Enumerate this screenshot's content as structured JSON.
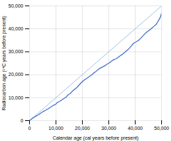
{
  "chart_data": {
    "type": "line",
    "xlabel": "Calendar age (cal years before present)",
    "ylabel": "Radiocarbon age (¹⁴C years before present)",
    "xlim": [
      0,
      50000
    ],
    "ylim": [
      0,
      50000
    ],
    "xticks": [
      0,
      {
        "value": 10000,
        "label": "10,000"
      },
      {
        "value": 20000,
        "label": "20,000"
      },
      {
        "value": 30000,
        "label": "30,000"
      },
      {
        "value": 40000,
        "label": "40,000"
      },
      {
        "value": 50000,
        "label": "50,000"
      }
    ],
    "yticks": [
      0,
      {
        "value": 10000,
        "label": "10,000"
      },
      {
        "value": 20000,
        "label": "20,000"
      },
      {
        "value": 30000,
        "label": "30,000"
      },
      {
        "value": 40000,
        "label": "40,000"
      },
      {
        "value": 50000,
        "label": "50,000"
      }
    ],
    "grid": true,
    "series": [
      {
        "color": "#9DC3E6",
        "x": [
          0,
          50000
        ],
        "values": [
          0,
          50000
        ]
      },
      {
        "color": "#4472C4",
        "x": [
          0,
          200,
          400,
          600,
          800,
          1000,
          1200,
          1400,
          1600,
          1800,
          2000,
          2200,
          2400,
          2600,
          2800,
          3000,
          3200,
          3400,
          3600,
          3800,
          4000,
          4200,
          4400,
          4600,
          4800,
          5000,
          5200,
          5400,
          5600,
          5800,
          6000,
          6200,
          6400,
          6600,
          6800,
          7000,
          7200,
          7400,
          7600,
          7800,
          8000,
          8200,
          8400,
          8600,
          8800,
          9000,
          9200,
          9400,
          9600,
          9800,
          10000,
          10200,
          10400,
          10600,
          10800,
          11000,
          11200,
          11400,
          11600,
          11800,
          12000,
          12200,
          12400,
          12600,
          12800,
          13000,
          13200,
          13400,
          13600,
          13800,
          14000,
          14200,
          14400,
          14600,
          14800,
          15000,
          15500,
          16000,
          16500,
          17000,
          17500,
          18000,
          18500,
          19000,
          19500,
          20000,
          20500,
          21000,
          21500,
          22000,
          22500,
          23000,
          23500,
          24000,
          24500,
          25000,
          25500,
          26000,
          26500,
          27000,
          27500,
          28000,
          28500,
          29000,
          29500,
          30000,
          30500,
          31000,
          31500,
          32000,
          32500,
          33000,
          33500,
          34000,
          34500,
          35000,
          35500,
          36000,
          36500,
          37000,
          37500,
          38000,
          38500,
          39000,
          39500,
          40000,
          40500,
          41000,
          41500,
          42000,
          42500,
          43000,
          43500,
          44000,
          44500,
          45000,
          45500,
          46000,
          46500,
          47000,
          47500,
          48000,
          48500,
          49000,
          49500,
          50000
        ],
        "values": [
          0,
          190,
          380,
          560,
          740,
          920,
          1090,
          1250,
          1390,
          1510,
          1640,
          1780,
          1930,
          2070,
          2200,
          2340,
          2490,
          2630,
          2760,
          2900,
          3050,
          3220,
          3380,
          3540,
          3680,
          3820,
          3960,
          4100,
          4240,
          4360,
          4480,
          4610,
          4750,
          4890,
          5010,
          5130,
          5270,
          5410,
          5550,
          5700,
          5850,
          6000,
          6160,
          6310,
          6460,
          6610,
          6750,
          6870,
          6980,
          7090,
          7260,
          7540,
          7770,
          7920,
          8060,
          8180,
          8290,
          8430,
          8580,
          8700,
          8820,
          9030,
          9200,
          9300,
          9430,
          9620,
          9800,
          9940,
          10050,
          10200,
          10400,
          10700,
          11000,
          11200,
          11350,
          11500,
          11900,
          12600,
          13100,
          13600,
          14000,
          14500,
          15200,
          15800,
          16400,
          17000,
          17500,
          17900,
          18300,
          18700,
          19100,
          19500,
          19900,
          20400,
          20900,
          21300,
          21800,
          22300,
          22700,
          23000,
          23300,
          23600,
          23900,
          24300,
          24700,
          25000,
          25400,
          25900,
          26300,
          26600,
          26800,
          27100,
          27500,
          28000,
          28400,
          28800,
          29200,
          29700,
          30200,
          30700,
          31200,
          31800,
          32500,
          33200,
          33800,
          34100,
          34400,
          34800,
          35200,
          35800,
          36400,
          37000,
          37600,
          38200,
          38700,
          39100,
          39500,
          40000,
          40500,
          41000,
          41500,
          42000,
          43000,
          44000,
          45000,
          46900
        ]
      }
    ]
  }
}
